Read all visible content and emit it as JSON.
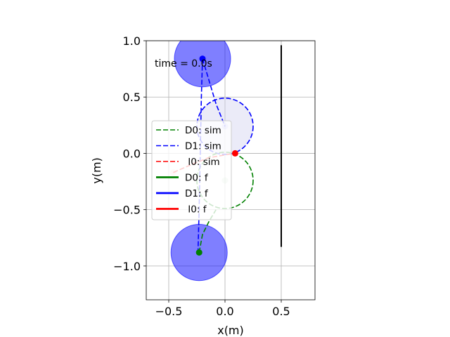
{
  "chart_data": {
    "type": "scatter",
    "title": "",
    "xlabel": "x(m)",
    "ylabel": "y(m)",
    "xlim": [
      -0.7,
      0.8
    ],
    "ylim": [
      -1.3,
      1.0
    ],
    "xticks": [
      -0.5,
      0.0,
      0.5
    ],
    "yticks": [
      1.0,
      0.5,
      0.0,
      -0.5,
      -1.0
    ],
    "xtick_labels": [
      "−0.5",
      "0.0",
      "0.5"
    ],
    "ytick_labels": [
      "1.0",
      "0.5",
      "0.0",
      "−0.5",
      "−1.0"
    ],
    "grid": true,
    "annotation": "time = 0.0s",
    "legend_position": "center-left",
    "legend": [
      {
        "label": "D0: sim",
        "color": "#008000",
        "style": "dashed"
      },
      {
        "label": "D1: sim",
        "color": "#0000ff",
        "style": "dashed"
      },
      {
        "label": " I0: sim",
        "color": "#ff0000",
        "style": "dashed"
      },
      {
        "label": "D0: f",
        "color": "#008000",
        "style": "solid"
      },
      {
        "label": "D1: f",
        "color": "#0000ff",
        "style": "solid"
      },
      {
        "label": " I0: f",
        "color": "#ff0000",
        "style": "solid"
      }
    ],
    "wall": {
      "x": 0.5,
      "y": [
        -0.83,
        0.96
      ],
      "color": "#000000"
    },
    "circles": [
      {
        "name": "D1 capture range",
        "cx": -0.2,
        "cy": 0.84,
        "r": 0.25,
        "color": "#0000ff",
        "fill": true
      },
      {
        "name": "D0 capture range",
        "cx": -0.23,
        "cy": -0.88,
        "r": 0.25,
        "color": "#0000ff",
        "fill": true
      },
      {
        "name": "D1 sim range",
        "cx": 0.0,
        "cy": 0.24,
        "r": 0.25,
        "color": "#0000ff",
        "fill": false
      },
      {
        "name": "D0 sim range",
        "cx": 0.0,
        "cy": -0.24,
        "r": 0.25,
        "color": "#008000",
        "fill": false
      }
    ],
    "series": [
      {
        "name": "D0: sim",
        "color": "#008000",
        "style": "dashed",
        "points": [
          [
            -0.23,
            -0.88
          ],
          [
            -0.2,
            -0.72
          ],
          [
            -0.14,
            -0.6
          ],
          [
            -0.08,
            -0.5
          ]
        ]
      },
      {
        "name": "D1: sim",
        "color": "#0000ff",
        "style": "dashed",
        "points": [
          [
            -0.2,
            0.84
          ],
          [
            -0.21,
            0.5
          ],
          [
            -0.22,
            0.0
          ],
          [
            -0.23,
            -0.5
          ],
          [
            -0.24,
            -0.88
          ]
        ]
      },
      {
        "name": "D1: sim",
        "color": "#0000ff",
        "style": "dashed",
        "points": [
          [
            -0.2,
            0.84
          ],
          [
            -0.14,
            0.64
          ],
          [
            -0.08,
            0.44
          ],
          [
            0.0,
            0.24
          ]
        ]
      },
      {
        "name": " I0: sim",
        "color": "#ff0000",
        "style": "dashed",
        "points": [
          [
            -0.46,
            -0.17
          ],
          [
            -0.3,
            -0.1
          ],
          [
            -0.15,
            -0.04
          ],
          [
            0.08,
            0.0
          ]
        ]
      }
    ],
    "markers": [
      {
        "name": "D1",
        "x": -0.2,
        "y": 0.84,
        "color": "#0000ff",
        "alpha": 1.0
      },
      {
        "name": "D0",
        "x": -0.23,
        "y": -0.88,
        "color": "#008000",
        "alpha": 1.0
      },
      {
        "name": "I0",
        "x": 0.09,
        "y": 0.0,
        "color": "#ff0000",
        "alpha": 1.0
      },
      {
        "name": "D1 sim",
        "x": 0.0,
        "y": 0.24,
        "color": "#0000ff",
        "alpha": 0.15
      },
      {
        "name": "D0 sim",
        "x": 0.0,
        "y": -0.24,
        "color": "#008000",
        "alpha": 0.15
      },
      {
        "name": "I0 sim",
        "x": -0.46,
        "y": -0.17,
        "color": "#ff0000",
        "alpha": 0.15
      }
    ]
  }
}
